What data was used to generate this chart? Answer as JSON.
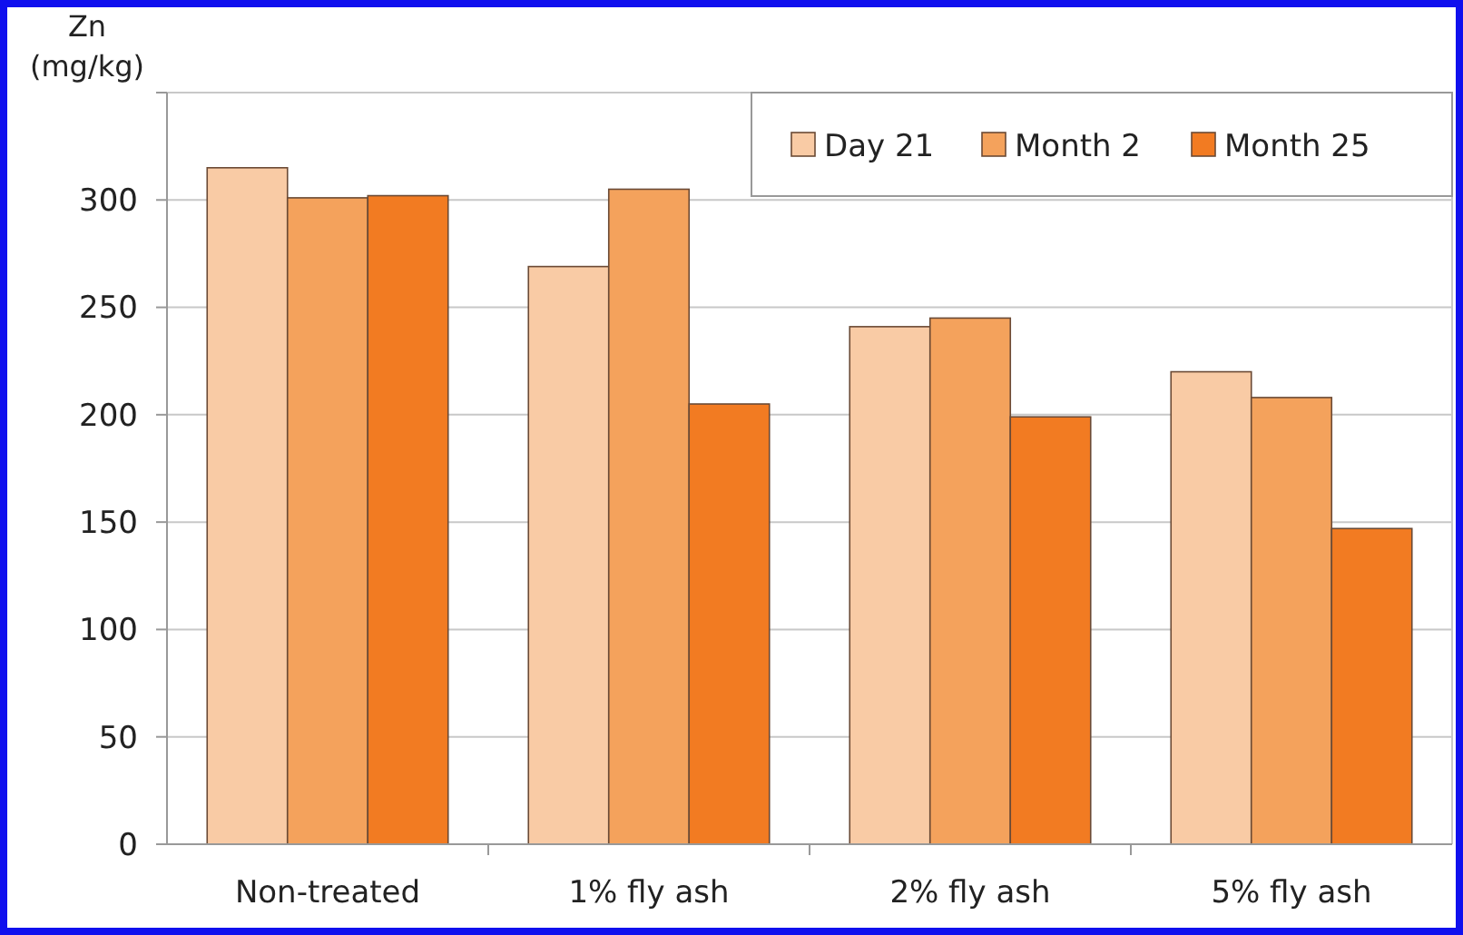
{
  "chart_data": {
    "type": "bar",
    "ylabel": "Zn (mg/kg)",
    "categories": [
      "Non-treated",
      "1% fly ash",
      "2% fly ash",
      "5% fly ash"
    ],
    "series": [
      {
        "name": "Day 21",
        "color": "#f9cba5",
        "values": [
          315,
          269,
          241,
          220
        ]
      },
      {
        "name": "Month 2",
        "color": "#f4a25c",
        "values": [
          301,
          305,
          245,
          208
        ]
      },
      {
        "name": "Month 25",
        "color": "#f27b22",
        "values": [
          302,
          205,
          199,
          147
        ]
      }
    ],
    "ylim": [
      0,
      350
    ],
    "yticks": [
      0,
      50,
      100,
      150,
      200,
      250,
      300,
      {
        "value": 350,
        "label": null
      }
    ],
    "grid": "y",
    "legend": "top right"
  }
}
